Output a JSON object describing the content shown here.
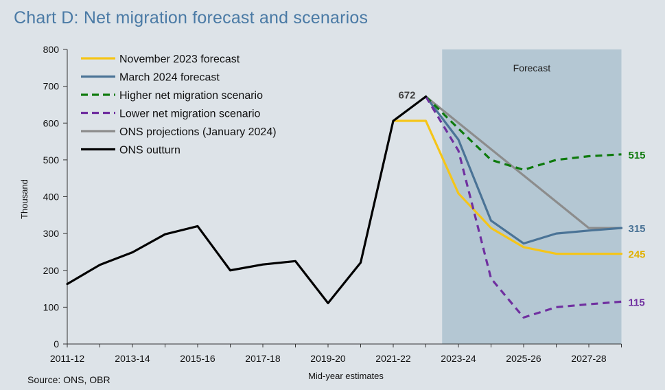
{
  "title": "Chart D: Net migration forecast and scenarios",
  "source": "Source: ONS, OBR",
  "chart_data": {
    "type": "line",
    "xlabel": "Mid-year estimates",
    "ylabel": "Thousand",
    "ylim": [
      0,
      800
    ],
    "yticks": [
      0,
      100,
      200,
      300,
      400,
      500,
      600,
      700,
      800
    ],
    "x": [
      "2011-12",
      "2012-13",
      "2013-14",
      "2014-15",
      "2015-16",
      "2016-17",
      "2017-18",
      "2018-19",
      "2019-20",
      "2020-21",
      "2021-22",
      "2022-23",
      "2023-24",
      "2024-25",
      "2025-26",
      "2026-27",
      "2027-28",
      "2028-29"
    ],
    "xtick_labels": [
      "2011-12",
      "2013-14",
      "2015-16",
      "2017-18",
      "2019-20",
      "2021-22",
      "2023-24",
      "2025-26",
      "2027-28"
    ],
    "shaded_region": {
      "label": "Forecast",
      "from": "2022-23",
      "to": "2028-29",
      "color": "#b4c7d3"
    },
    "grid": false,
    "legend_position": "top-left",
    "series": [
      {
        "name": "November 2023 forecast",
        "color": "#f5c518",
        "dash": false,
        "x": [
          "2021-22",
          "2022-23",
          "2023-24",
          "2024-25",
          "2025-26",
          "2026-27",
          "2027-28",
          "2028-29"
        ],
        "values": [
          606,
          606,
          409,
          315,
          263,
          245,
          245,
          245
        ]
      },
      {
        "name": "March 2024 forecast",
        "color": "#4a7396",
        "dash": false,
        "x": [
          "2022-23",
          "2023-24",
          "2024-25",
          "2025-26",
          "2026-27",
          "2027-28",
          "2028-29"
        ],
        "values": [
          672,
          555,
          335,
          273,
          300,
          308,
          315
        ]
      },
      {
        "name": "Higher net migration scenario",
        "color": "#0e7a0d",
        "dash": true,
        "x": [
          "2022-23",
          "2023-24",
          "2024-25",
          "2025-26",
          "2026-27",
          "2027-28",
          "2028-29"
        ],
        "values": [
          672,
          585,
          500,
          473,
          500,
          510,
          515
        ]
      },
      {
        "name": "Lower net migration scenario",
        "color": "#7030a0",
        "dash": true,
        "x": [
          "2022-23",
          "2023-24",
          "2024-25",
          "2025-26",
          "2026-27",
          "2027-28",
          "2028-29"
        ],
        "values": [
          672,
          525,
          178,
          72,
          100,
          108,
          115
        ]
      },
      {
        "name": "ONS projections (January 2024)",
        "color": "#8c8c8c",
        "dash": false,
        "x": [
          "2022-23",
          "2027-28",
          "2028-29"
        ],
        "values": [
          672,
          315,
          315
        ]
      },
      {
        "name": "ONS outturn",
        "color": "#000000",
        "dash": false,
        "x": [
          "2011-12",
          "2012-13",
          "2013-14",
          "2014-15",
          "2015-16",
          "2016-17",
          "2017-18",
          "2018-19",
          "2019-20",
          "2020-21",
          "2021-22",
          "2022-23"
        ],
        "values": [
          163,
          215,
          249,
          298,
          320,
          200,
          216,
          225,
          111,
          221,
          606,
          672
        ]
      }
    ],
    "annotations": [
      {
        "text": "672",
        "x": "2022-23",
        "y": 672,
        "color": "#404040"
      },
      {
        "text": "515",
        "x": "2028-29",
        "y": 515,
        "color": "#0e7a0d"
      },
      {
        "text": "315",
        "x": "2028-29",
        "y": 315,
        "color": "#4a7396"
      },
      {
        "text": "245",
        "x": "2028-29",
        "y": 245,
        "color": "#e0b000"
      },
      {
        "text": "115",
        "x": "2028-29",
        "y": 115,
        "color": "#7030a0"
      }
    ]
  }
}
